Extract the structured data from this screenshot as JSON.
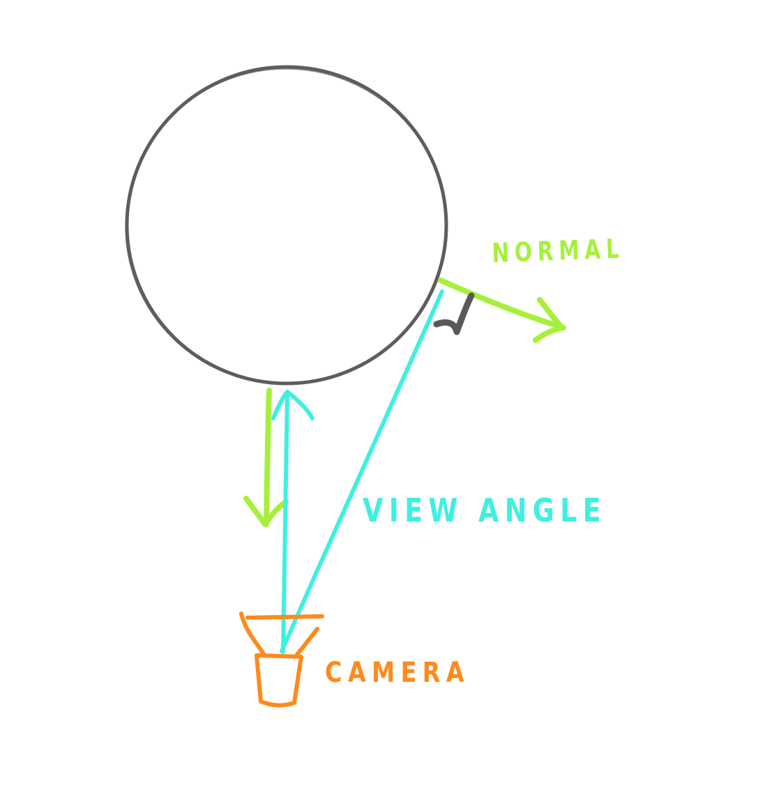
{
  "labels": {
    "normal": "NORMAL",
    "view_angle": "VIEW ANGLE",
    "camera": "CAMERA"
  },
  "colors": {
    "background": "#ffffff",
    "sphere_outline": "#5f5c5f",
    "normal": "#a6f03c",
    "view": "#3ef0e0",
    "camera": "#ff8a1c",
    "right_angle_mark": "#5a585a"
  },
  "elements": {
    "sphere": "sphere-outline",
    "normal_vectors": [
      "surface-normal-arrow-right",
      "surface-normal-arrow-down"
    ],
    "view_rays": [
      "view-ray-bottom",
      "view-ray-angled"
    ],
    "marks": [
      "angle-tick-mark"
    ],
    "camera_icon": "camera-icon"
  }
}
